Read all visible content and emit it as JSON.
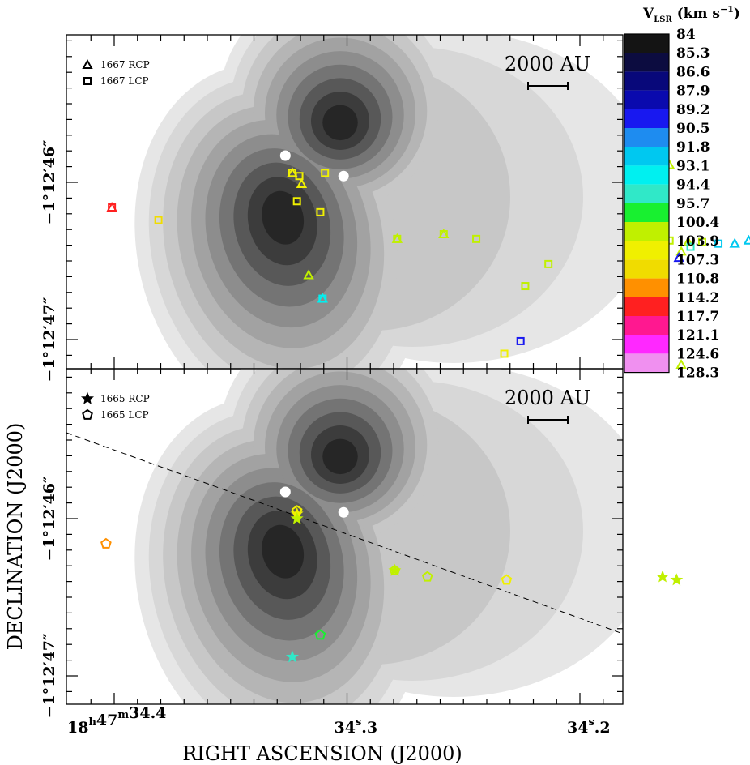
{
  "chart_data": {
    "type": "scatter",
    "xlabel": "RIGHT ASCENSION (J2000)",
    "ylabel": "DECLINATION (J2000)",
    "x_ticks": [
      {
        "ra": 34.4,
        "label_h": "18",
        "label_m": "47",
        "label_s": "34.4",
        "sup_h": "h",
        "sup_m": "m",
        "sup_s": "s"
      },
      {
        "ra": 34.3,
        "label_s": "34",
        "label_frac": ".3",
        "sup_s": "s"
      },
      {
        "ra": 34.2,
        "label_s": "34",
        "label_frac": ".2",
        "sup_s": "s"
      }
    ],
    "y_ticks": [
      {
        "dec": 46.0,
        "label": "−1°12′46″"
      },
      {
        "dec": 47.0,
        "label": "−1°12′47″"
      }
    ],
    "scale_bar": "2000 AU",
    "colorbar": {
      "title": "V",
      "title_sub": "LSR",
      "title_units": "(km s",
      "title_exp": "−1",
      "title_close": ")",
      "levels": [
        84,
        85.3,
        86.6,
        87.9,
        89.2,
        90.5,
        91.8,
        93.1,
        94.4,
        95.7,
        100.4,
        103.9,
        107.3,
        110.8,
        114.2,
        117.7,
        121.1,
        124.6,
        128.3
      ],
      "level_labels": [
        "84",
        "85.3",
        "86.6",
        "87.9",
        "89.2",
        "90.5",
        "91.8",
        "93.1",
        "94.4",
        "95.7",
        "100.4",
        "103.9",
        "107.3",
        "110.8",
        "114.2",
        "117.7",
        "121.1",
        "124.6",
        "128.3"
      ],
      "colors": [
        "#141414",
        "#0c0c40",
        "#08087a",
        "#0a0aae",
        "#1818f0",
        "#1e8cf0",
        "#00c8f0",
        "#00f0f0",
        "#30e8c8",
        "#18f030",
        "#c0f000",
        "#f0f000",
        "#f0dc00",
        "#ff9000",
        "#ff2020",
        "#ff1890",
        "#ff28ff",
        "#f090f0"
      ]
    },
    "panels": [
      {
        "name": "1667",
        "legend": [
          {
            "marker": "triangle",
            "label": "1667 RCP"
          },
          {
            "marker": "square",
            "label": "1667 LCP"
          }
        ],
        "continuum_peaks": [
          {
            "ra": 34.3265,
            "dec": 45.83
          },
          {
            "ra": 34.3015,
            "dec": 45.96
          }
        ],
        "points": [
          {
            "ra": 34.401,
            "dec": 46.16,
            "v": 114.2,
            "m": "square"
          },
          {
            "ra": 34.401,
            "dec": 46.16,
            "v": 114.2,
            "m": "triangle"
          },
          {
            "ra": 34.381,
            "dec": 46.24,
            "v": 107.3,
            "m": "square"
          },
          {
            "ra": 34.3235,
            "dec": 45.94,
            "v": 103.9,
            "m": "square"
          },
          {
            "ra": 34.3235,
            "dec": 45.94,
            "v": 103.9,
            "m": "triangle"
          },
          {
            "ra": 34.3205,
            "dec": 45.96,
            "v": 103.9,
            "m": "square"
          },
          {
            "ra": 34.3195,
            "dec": 46.01,
            "v": 103.9,
            "m": "triangle"
          },
          {
            "ra": 34.3095,
            "dec": 45.94,
            "v": 103.9,
            "m": "square"
          },
          {
            "ra": 34.3215,
            "dec": 46.12,
            "v": 103.9,
            "m": "square"
          },
          {
            "ra": 34.3115,
            "dec": 46.19,
            "v": 103.9,
            "m": "square"
          },
          {
            "ra": 34.2785,
            "dec": 46.36,
            "v": 100.4,
            "m": "triangle"
          },
          {
            "ra": 34.2785,
            "dec": 46.36,
            "v": 100.4,
            "m": "square"
          },
          {
            "ra": 34.2585,
            "dec": 46.33,
            "v": 100.4,
            "m": "square"
          },
          {
            "ra": 34.2585,
            "dec": 46.33,
            "v": 100.4,
            "m": "triangle"
          },
          {
            "ra": 34.2445,
            "dec": 46.36,
            "v": 100.4,
            "m": "square"
          },
          {
            "ra": 34.3165,
            "dec": 46.59,
            "v": 100.4,
            "m": "triangle"
          },
          {
            "ra": 34.2235,
            "dec": 46.66,
            "v": 100.4,
            "m": "square"
          },
          {
            "ra": 34.2135,
            "dec": 46.52,
            "v": 100.4,
            "m": "square"
          },
          {
            "ra": 34.1615,
            "dec": 45.89,
            "v": 100.4,
            "m": "triangle"
          },
          {
            "ra": 34.1615,
            "dec": 46.37,
            "v": 100.4,
            "m": "square"
          },
          {
            "ra": 34.1535,
            "dec": 46.38,
            "v": 100.4,
            "m": "triangle"
          },
          {
            "ra": 34.1475,
            "dec": 46.38,
            "v": 100.4,
            "m": "square"
          },
          {
            "ra": 34.1655,
            "dec": 46.44,
            "v": 100.4,
            "m": "square"
          },
          {
            "ra": 34.1565,
            "dec": 46.44,
            "v": 100.4,
            "m": "triangle"
          },
          {
            "ra": 34.1525,
            "dec": 46.41,
            "v": 94.4,
            "m": "square"
          },
          {
            "ra": 34.1565,
            "dec": 47.16,
            "v": 100.4,
            "m": "triangle"
          },
          {
            "ra": 34.2255,
            "dec": 47.01,
            "v": 89.2,
            "m": "square"
          },
          {
            "ra": 34.1575,
            "dec": 46.48,
            "v": 89.2,
            "m": "triangle"
          },
          {
            "ra": 34.3105,
            "dec": 46.74,
            "v": 93.1,
            "m": "square"
          },
          {
            "ra": 34.3105,
            "dec": 46.74,
            "v": 93.1,
            "m": "triangle"
          },
          {
            "ra": 34.2325,
            "dec": 47.09,
            "v": 103.9,
            "m": "square"
          },
          {
            "ra": 34.1405,
            "dec": 46.39,
            "v": 91.8,
            "m": "square"
          },
          {
            "ra": 34.1335,
            "dec": 46.39,
            "v": 91.8,
            "m": "triangle"
          },
          {
            "ra": 34.1275,
            "dec": 46.37,
            "v": 91.8,
            "m": "triangle"
          },
          {
            "ra": 34.1165,
            "dec": 46.33,
            "v": 91.8,
            "m": "square"
          },
          {
            "ra": 34.0975,
            "dec": 46.37,
            "v": 103.9,
            "m": "triangle"
          }
        ]
      },
      {
        "name": "1665",
        "legend": [
          {
            "marker": "star",
            "label": "1665 RCP"
          },
          {
            "marker": "pentagon",
            "label": "1665 LCP"
          }
        ],
        "continuum_peaks": [
          {
            "ra": 34.3265,
            "dec": 45.83
          },
          {
            "ra": 34.3015,
            "dec": 45.96
          }
        ],
        "points": [
          {
            "ra": 34.4035,
            "dec": 46.16,
            "v": 110.8,
            "m": "pentagon"
          },
          {
            "ra": 34.3215,
            "dec": 45.95,
            "v": 103.9,
            "m": "pentagon"
          },
          {
            "ra": 34.3215,
            "dec": 45.97,
            "v": 103.9,
            "m": "star"
          },
          {
            "ra": 34.3215,
            "dec": 46.0,
            "v": 100.4,
            "m": "star"
          },
          {
            "ra": 34.2795,
            "dec": 46.33,
            "v": 100.4,
            "m": "pentagon"
          },
          {
            "ra": 34.2795,
            "dec": 46.33,
            "v": 100.4,
            "m": "star"
          },
          {
            "ra": 34.2315,
            "dec": 46.39,
            "v": 103.9,
            "m": "pentagon"
          },
          {
            "ra": 34.2655,
            "dec": 46.37,
            "v": 100.4,
            "m": "pentagon"
          },
          {
            "ra": 34.1645,
            "dec": 46.37,
            "v": 100.4,
            "m": "star"
          },
          {
            "ra": 34.1585,
            "dec": 46.39,
            "v": 100.4,
            "m": "star"
          },
          {
            "ra": 34.3115,
            "dec": 46.74,
            "v": 95.7,
            "m": "pentagon"
          },
          {
            "ra": 34.3235,
            "dec": 46.88,
            "v": 94.4,
            "m": "star"
          }
        ]
      }
    ]
  }
}
